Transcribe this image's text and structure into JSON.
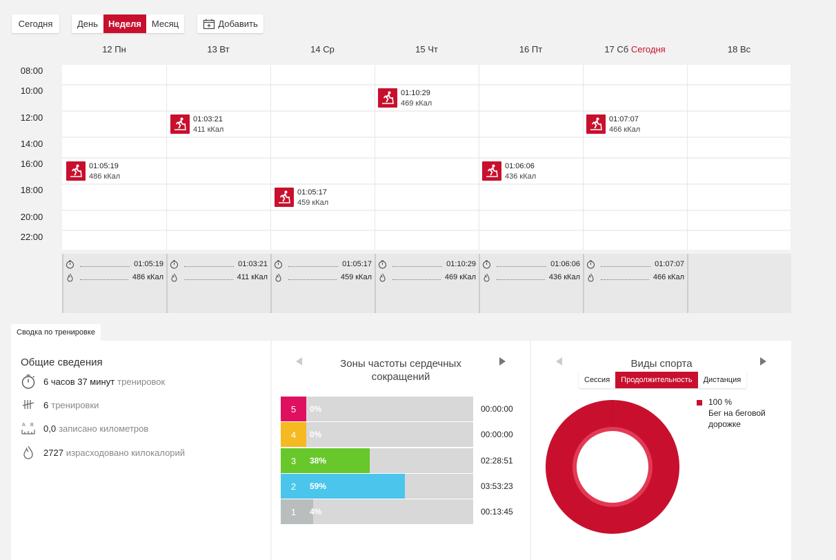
{
  "toolbar": {
    "today_label": "Сегодня",
    "views": [
      "День",
      "Неделя",
      "Месяц"
    ],
    "active_view": "Неделя",
    "add_label": "Добавить"
  },
  "days": [
    {
      "label": "12 Пн",
      "today": ""
    },
    {
      "label": "13 Вт",
      "today": ""
    },
    {
      "label": "14 Ср",
      "today": ""
    },
    {
      "label": "15 Чт",
      "today": ""
    },
    {
      "label": "16 Пт",
      "today": ""
    },
    {
      "label": "17 Сб",
      "today": "Сегодня"
    },
    {
      "label": "18 Вс",
      "today": ""
    }
  ],
  "times": [
    "08:00",
    "10:00",
    "12:00",
    "14:00",
    "16:00",
    "18:00",
    "20:00",
    "22:00"
  ],
  "events": [
    {
      "day": 0,
      "duration": "01:05:19",
      "kcal": "486 кКал",
      "icon": "treadmill-icon"
    },
    {
      "day": 1,
      "duration": "01:03:21",
      "kcal": "411 кКал",
      "icon": "treadmill-icon"
    },
    {
      "day": 2,
      "duration": "01:05:17",
      "kcal": "459 кКал",
      "icon": "treadmill-icon"
    },
    {
      "day": 3,
      "duration": "01:10:29",
      "kcal": "469 кКал",
      "icon": "treadmill-icon"
    },
    {
      "day": 4,
      "duration": "01:06:06",
      "kcal": "436 кКал",
      "icon": "treadmill-icon"
    },
    {
      "day": 5,
      "duration": "01:07:07",
      "kcal": "466 кКал",
      "icon": "treadmill-icon"
    }
  ],
  "day_summary": [
    {
      "duration": "01:05:19",
      "kcal": "486 кКал"
    },
    {
      "duration": "01:03:21",
      "kcal": "411 кКал"
    },
    {
      "duration": "01:05:17",
      "kcal": "459 кКал"
    },
    {
      "duration": "01:10:29",
      "kcal": "469 кКал"
    },
    {
      "duration": "01:06:06",
      "kcal": "436 кКал"
    },
    {
      "duration": "01:07:07",
      "kcal": "466 кКал"
    }
  ],
  "summary_tab": "Сводка по тренировке",
  "general": {
    "title": "Общие сведения",
    "rows": [
      {
        "icon": "stopwatch-icon",
        "value": "6 часов 37 минут",
        "label": "тренировок"
      },
      {
        "icon": "tally-icon",
        "value": "6",
        "label": "тренировки"
      },
      {
        "icon": "distance-icon",
        "value": "0,0",
        "label": "записано километров"
      },
      {
        "icon": "flame-icon",
        "value": "2727",
        "label": "израсходовано килокалорий"
      }
    ]
  },
  "hr_zones": {
    "title": "Зоны частоты сердечных сокращений",
    "zones": [
      {
        "zone": "5",
        "percent": "0%",
        "fraction": 0.0,
        "time": "00:00:00",
        "color": "#e01060"
      },
      {
        "zone": "4",
        "percent": "0%",
        "fraction": 0.0,
        "time": "00:00:00",
        "color": "#f5b921"
      },
      {
        "zone": "3",
        "percent": "38%",
        "fraction": 0.38,
        "time": "02:28:51",
        "color": "#67c72b"
      },
      {
        "zone": "2",
        "percent": "59%",
        "fraction": 0.59,
        "time": "03:53:23",
        "color": "#4bc5ec"
      },
      {
        "zone": "1",
        "percent": "4%",
        "fraction": 0.04,
        "time": "00:13:45",
        "color": "#b9bdbd"
      }
    ]
  },
  "sports": {
    "title": "Виды спорта",
    "tabs": [
      "Сессия",
      "Продолжительность",
      "Дистанция"
    ],
    "active_tab": "Продолжительность",
    "legend_percent": "100 %",
    "legend_label": "Бег на беговой дорожке",
    "donut_value": 100,
    "color": "#c8102e"
  }
}
